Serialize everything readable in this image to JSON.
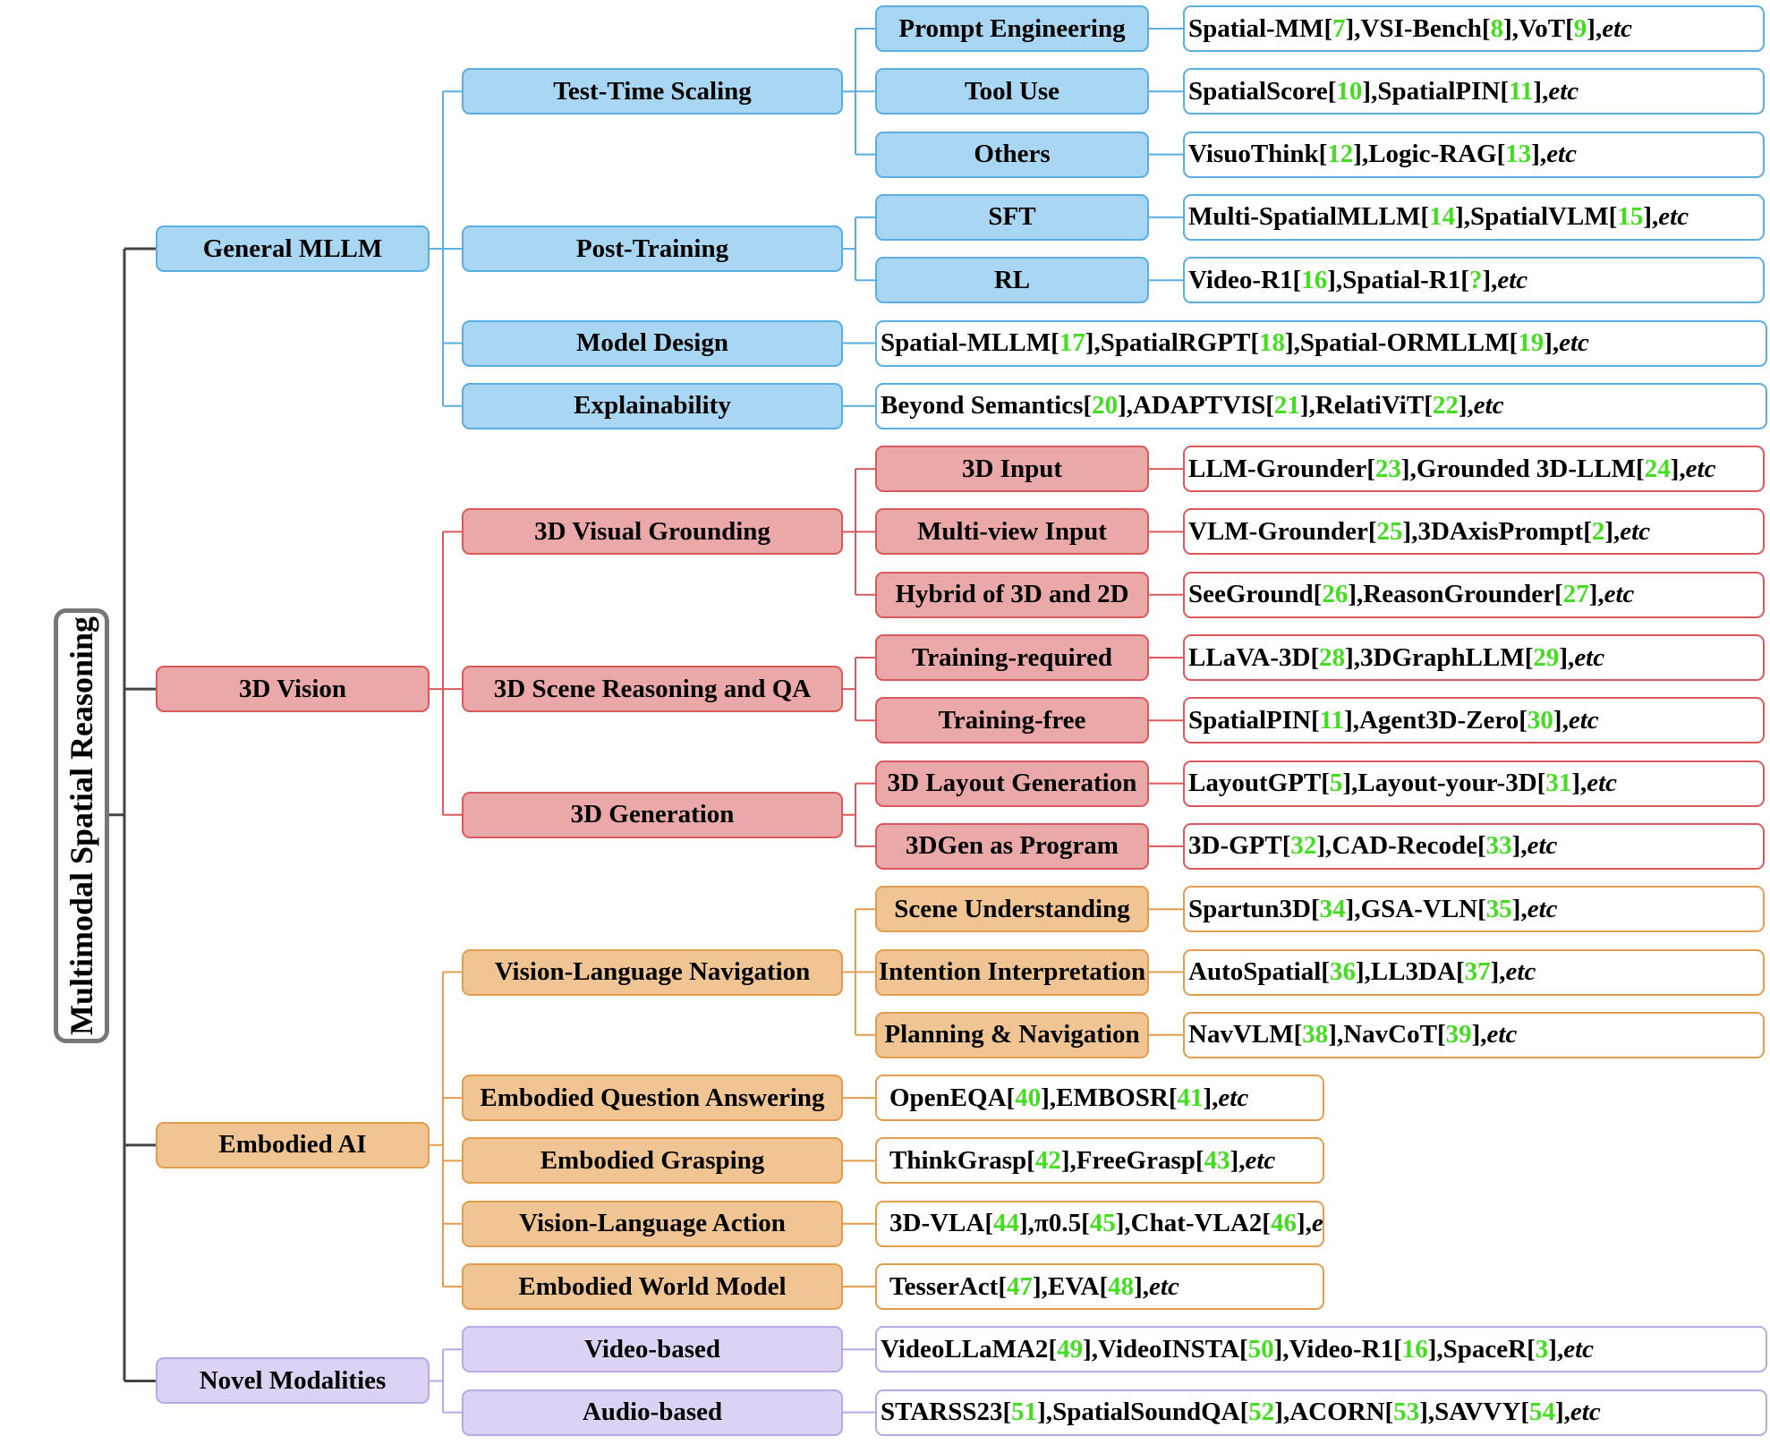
{
  "title": "Multimodal Spatial Reasoning",
  "colors": {
    "blue": {
      "fill": "#a9d6f2",
      "stroke": "#5aaee0"
    },
    "red": {
      "fill": "#eba8a8",
      "stroke": "#d9595c"
    },
    "orange": {
      "fill": "#f0c493",
      "stroke": "#e29d4e"
    },
    "purple": {
      "fill": "#dcd3f4",
      "stroke": "#b8a8e6"
    },
    "root_border": "#777777",
    "root_line": "#444444",
    "ref": "#44dd22"
  },
  "categories": [
    {
      "label": "General MLLM",
      "color": "blue",
      "children": [
        {
          "label": "Test-Time Scaling",
          "children": [
            {
              "label": "Prompt Engineering",
              "refs": [
                {
                  "name": "Spatial-MM",
                  "ref": "7"
                },
                {
                  "name": "VSI-Bench",
                  "ref": "8"
                },
                {
                  "name": "VoT",
                  "ref": "9"
                }
              ]
            },
            {
              "label": "Tool Use",
              "refs": [
                {
                  "name": "SpatialScore",
                  "ref": "10"
                },
                {
                  "name": "SpatialPIN",
                  "ref": "11"
                }
              ]
            },
            {
              "label": "Others",
              "refs": [
                {
                  "name": "VisuoThink",
                  "ref": "12"
                },
                {
                  "name": "Logic-RAG",
                  "ref": "13"
                }
              ]
            }
          ]
        },
        {
          "label": "Post-Training",
          "children": [
            {
              "label": "SFT",
              "refs": [
                {
                  "name": "Multi-SpatialMLLM",
                  "ref": "14"
                },
                {
                  "name": "SpatialVLM",
                  "ref": "15"
                }
              ]
            },
            {
              "label": "RL",
              "refs": [
                {
                  "name": "Video-R1",
                  "ref": "16"
                },
                {
                  "name": "Spatial-R1",
                  "ref": "? "
                }
              ]
            }
          ]
        },
        {
          "label": "Model Design",
          "refs": [
            {
              "name": "Spatial-MLLM",
              "ref": "17"
            },
            {
              "name": "SpatialRGPT",
              "ref": "18"
            },
            {
              "name": "Spatial-ORMLLM",
              "ref": "19"
            }
          ]
        },
        {
          "label": "Explainability",
          "refs": [
            {
              "name": "Beyond Semantics",
              "ref": "20"
            },
            {
              "name": "ADAPTVIS",
              "ref": "21"
            },
            {
              "name": "RelatiViT",
              "ref": "22"
            }
          ]
        }
      ]
    },
    {
      "label": "3D Vision",
      "color": "red",
      "children": [
        {
          "label": "3D Visual Grounding",
          "children": [
            {
              "label": "3D Input",
              "refs": [
                {
                  "name": "LLM-Grounder",
                  "ref": "23"
                },
                {
                  "name": "Grounded 3D-LLM",
                  "ref": "24"
                }
              ]
            },
            {
              "label": "Multi-view Input",
              "refs": [
                {
                  "name": "VLM-Grounder",
                  "ref": "25"
                },
                {
                  "name": "3DAxisPrompt",
                  "ref": "2"
                }
              ]
            },
            {
              "label": "Hybrid of 3D and 2D",
              "refs": [
                {
                  "name": "SeeGround",
                  "ref": "26"
                },
                {
                  "name": "ReasonGrounder",
                  "ref": "27"
                }
              ]
            }
          ]
        },
        {
          "label": "3D Scene Reasoning and QA",
          "children": [
            {
              "label": "Training-required",
              "refs": [
                {
                  "name": "LLaVA-3D",
                  "ref": "28"
                },
                {
                  "name": "3DGraphLLM",
                  "ref": "29"
                }
              ]
            },
            {
              "label": "Training-free",
              "refs": [
                {
                  "name": "SpatialPIN",
                  "ref": "11"
                },
                {
                  "name": "Agent3D-Zero",
                  "ref": "30"
                }
              ]
            }
          ]
        },
        {
          "label": "3D Generation",
          "children": [
            {
              "label": "3D Layout Generation",
              "refs": [
                {
                  "name": "LayoutGPT",
                  "ref": "5"
                },
                {
                  "name": "Layout-your-3D",
                  "ref": "31"
                }
              ]
            },
            {
              "label": "3DGen as Program",
              "refs": [
                {
                  "name": "3D-GPT",
                  "ref": "32"
                },
                {
                  "name": "CAD-Recode",
                  "ref": "33"
                }
              ]
            }
          ]
        }
      ]
    },
    {
      "label": "Embodied AI",
      "color": "orange",
      "children": [
        {
          "label": "Vision-Language Navigation",
          "children": [
            {
              "label": "Scene Understanding",
              "refs": [
                {
                  "name": "Spartun3D",
                  "ref": "34"
                },
                {
                  "name": "GSA-VLN",
                  "ref": "35"
                }
              ]
            },
            {
              "label": "Intention Interpretation",
              "refs": [
                {
                  "name": "AutoSpatial",
                  "ref": "36"
                },
                {
                  "name": "LL3DA",
                  "ref": "37"
                }
              ]
            },
            {
              "label": "Planning & Navigation",
              "refs": [
                {
                  "name": "NavVLM",
                  "ref": "38"
                },
                {
                  "name": "NavCoT",
                  "ref": "39"
                }
              ]
            }
          ]
        },
        {
          "label": "Embodied Question Answering",
          "refs": [
            {
              "name": "OpenEQA",
              "ref": "40"
            },
            {
              "name": "EMBOSR",
              "ref": "41"
            }
          ]
        },
        {
          "label": "Embodied Grasping",
          "refs": [
            {
              "name": "ThinkGrasp",
              "ref": "42"
            },
            {
              "name": "FreeGrasp",
              "ref": "43"
            }
          ]
        },
        {
          "label": "Vision-Language Action",
          "refs": [
            {
              "name": "3D-VLA",
              "ref": "44"
            },
            {
              "name": "π0.5",
              "ref": "45",
              "tight": true
            },
            {
              "name": "Chat-VLA2",
              "ref": "46"
            }
          ]
        },
        {
          "label": "Embodied World Model",
          "refs": [
            {
              "name": "TesserAct",
              "ref": "47"
            },
            {
              "name": "EVA",
              "ref": "48"
            }
          ]
        }
      ]
    },
    {
      "label": "Novel Modalities",
      "color": "purple",
      "children": [
        {
          "label": "Video-based",
          "refs": [
            {
              "name": "VideoLLaMA2",
              "ref": "49"
            },
            {
              "name": "VideoINSTA",
              "ref": "50"
            },
            {
              "name": "Video-R1",
              "ref": "16"
            },
            {
              "name": "SpaceR",
              "ref": "3"
            }
          ]
        },
        {
          "label": "Audio-based",
          "refs": [
            {
              "name": "STARSS23",
              "ref": "51"
            },
            {
              "name": "SpatialSoundQA",
              "ref": "52"
            },
            {
              "name": "ACORN",
              "ref": "53"
            },
            {
              "name": "SAVVY",
              "ref": "54"
            }
          ]
        }
      ]
    }
  ],
  "etc_label": "etc"
}
